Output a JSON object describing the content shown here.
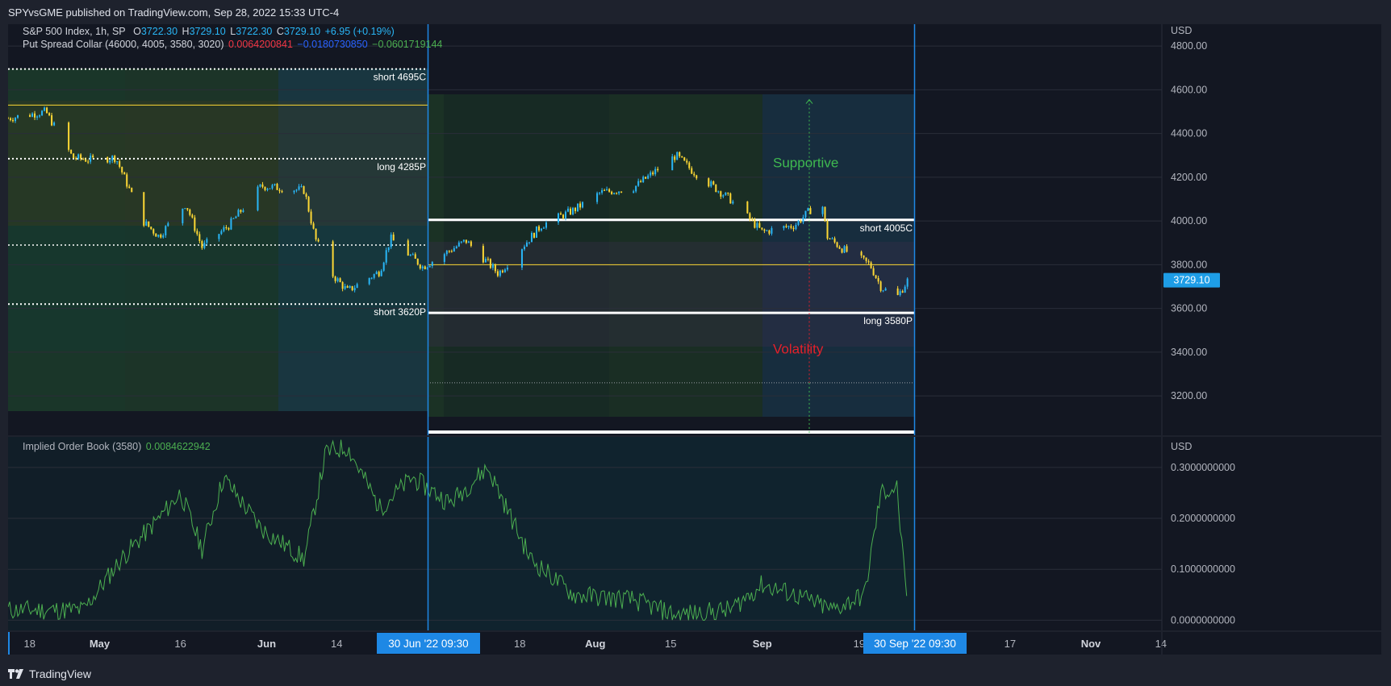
{
  "header": {
    "published_text": "SPYvsGME published on TradingView.com, Sep 28, 2022 15:33 UTC-4"
  },
  "main_legend": {
    "symbol": "S&P 500 Index, 1h, SP",
    "open_label": "O",
    "open_value": "3722.30",
    "high_label": "H",
    "high_value": "3729.10",
    "low_label": "L",
    "low_value": "3722.30",
    "close_label": "C",
    "close_value": "3729.10",
    "change": "+6.95 (+0.19%)",
    "indicator_name": "Put Spread Collar (46000, 4005, 3580, 3020)",
    "indicator_v1": "0.0064200841",
    "indicator_v2": "−0.0180730850",
    "indicator_v3": "−0.0601719144"
  },
  "sub_legend": {
    "indicator_name": "Implied Order Book (3580)",
    "indicator_value": "0.0084622942"
  },
  "price_axis": {
    "currency": "USD",
    "ticks": [
      "4800.00",
      "4600.00",
      "4400.00",
      "4200.00",
      "4000.00",
      "3800.00",
      "3600.00",
      "3400.00",
      "3200.00"
    ],
    "last_price": "3729.10"
  },
  "sub_axis": {
    "currency": "USD",
    "ticks": [
      "0.3000000000",
      "0.2000000000",
      "0.1000000000",
      "0.0000000000"
    ]
  },
  "time_axis": {
    "ticks": [
      "18",
      "May",
      "16",
      "Jun",
      "14",
      "18",
      "Aug",
      "15",
      "Sep",
      "19",
      "17",
      "Nov",
      "14"
    ],
    "highlight_start": "30 Jun '22   09:30",
    "highlight_end": "30 Sep '22   09:30"
  },
  "annotations": {
    "short_4695c": "short 4695C",
    "long_4285p": "long 4285P",
    "short_3620p": "short 3620P",
    "short_4005c": "short 4005C",
    "long_3580p": "long 3580P",
    "supportive": "Supportive",
    "volatility": "Volatility"
  },
  "colors": {
    "background": "#131722",
    "up_candle": "#29b6f6",
    "down_candle": "#fdd835",
    "legend_value": "#2196f3",
    "indicator_red": "#f23645",
    "indicator_blue": "#2962ff",
    "indicator_green": "#4caf50",
    "supportive": "#3fb950",
    "volatility": "#e5202b",
    "line_green": "#4caf50",
    "highlight": "#1e88e5"
  },
  "chart_data": [
    {
      "type": "candlestick",
      "title": "S&P 500 Index, 1h, SP",
      "x_start": "2022-04-14",
      "x_end": "2022-09-28",
      "ylim": [
        3020,
        4900
      ],
      "approx_close_path": [
        [
          "Apr 14",
          4470
        ],
        [
          "Apr 21",
          4500
        ],
        [
          "Apr 26",
          4290
        ],
        [
          "Apr 29",
          4280
        ],
        [
          "May 4",
          4290
        ],
        [
          "May 9",
          4000
        ],
        [
          "May 12",
          3930
        ],
        [
          "May 17",
          4080
        ],
        [
          "May 20",
          3880
        ],
        [
          "May 25",
          3980
        ],
        [
          "May 31",
          4160
        ],
        [
          "Jun 8",
          4140
        ],
        [
          "Jun 10",
          3920
        ],
        [
          "Jun 13",
          3760
        ],
        [
          "Jun 16",
          3680
        ],
        [
          "Jun 22",
          3770
        ],
        [
          "Jun 24",
          3920
        ],
        [
          "Jun 30",
          3790
        ],
        [
          "Jul 8",
          3910
        ],
        [
          "Jul 14",
          3760
        ],
        [
          "Jul 22",
          3980
        ],
        [
          "Jul 28",
          4050
        ],
        [
          "Aug 2",
          4130
        ],
        [
          "Aug 8",
          4150
        ],
        [
          "Aug 16",
          4300
        ],
        [
          "Aug 19",
          4230
        ],
        [
          "Aug 26",
          4100
        ],
        [
          "Sep 1",
          3950
        ],
        [
          "Sep 7",
          3980
        ],
        [
          "Sep 12",
          4100
        ],
        [
          "Sep 13",
          3930
        ],
        [
          "Sep 16",
          3870
        ],
        [
          "Sep 21",
          3800
        ],
        [
          "Sep 23",
          3700
        ],
        [
          "Sep 26",
          3650
        ],
        [
          "Sep 28",
          3729.1
        ]
      ],
      "horizontal_levels": [
        {
          "label": "short 4695C",
          "value": 4695
        },
        {
          "label": "long 4285P",
          "value": 4285
        },
        {
          "label": "short 3620P",
          "value": 3620
        },
        {
          "label": "short 4005C",
          "value": 4005
        },
        {
          "label": "long 3580P",
          "value": 3580
        }
      ]
    },
    {
      "type": "line",
      "title": "Implied Order Book (3580)",
      "ylim": [
        -0.02,
        0.36
      ],
      "approx_values": [
        [
          "Apr 14",
          0.02
        ],
        [
          "Apr 28",
          0.02
        ],
        [
          "May 5",
          0.12
        ],
        [
          "May 12",
          0.2
        ],
        [
          "May 16",
          0.25
        ],
        [
          "May 20",
          0.14
        ],
        [
          "May 24",
          0.28
        ],
        [
          "May 31",
          0.18
        ],
        [
          "Jun 8",
          0.12
        ],
        [
          "Jun 12",
          0.33
        ],
        [
          "Jun 16",
          0.34
        ],
        [
          "Jun 22",
          0.22
        ],
        [
          "Jun 28",
          0.28
        ],
        [
          "Jul 5",
          0.23
        ],
        [
          "Jul 12",
          0.3
        ],
        [
          "Jul 20",
          0.12
        ],
        [
          "Jul 28",
          0.05
        ],
        [
          "Aug 8",
          0.04
        ],
        [
          "Aug 16",
          0.01
        ],
        [
          "Aug 26",
          0.02
        ],
        [
          "Sep 1",
          0.07
        ],
        [
          "Sep 7",
          0.05
        ],
        [
          "Sep 14",
          0.02
        ],
        [
          "Sep 20",
          0.05
        ],
        [
          "Sep 23",
          0.25
        ],
        [
          "Sep 26",
          0.26
        ],
        [
          "Sep 28",
          0.0085
        ]
      ]
    }
  ]
}
